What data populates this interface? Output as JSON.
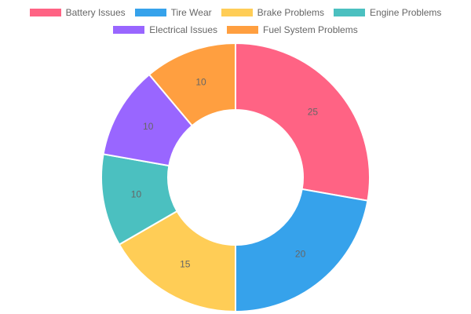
{
  "chart_data": {
    "type": "pie",
    "variant": "doughnut",
    "title": "",
    "legend_position": "top",
    "categories": [
      "Battery Issues",
      "Tire Wear",
      "Brake Problems",
      "Engine Problems",
      "Electrical Issues",
      "Fuel System Problems"
    ],
    "values": [
      25,
      20,
      15,
      10,
      10,
      10
    ],
    "colors": [
      "#ff6384",
      "#36a2eb",
      "#ffcd56",
      "#4bc0c0",
      "#9966ff",
      "#ff9f40"
    ]
  }
}
